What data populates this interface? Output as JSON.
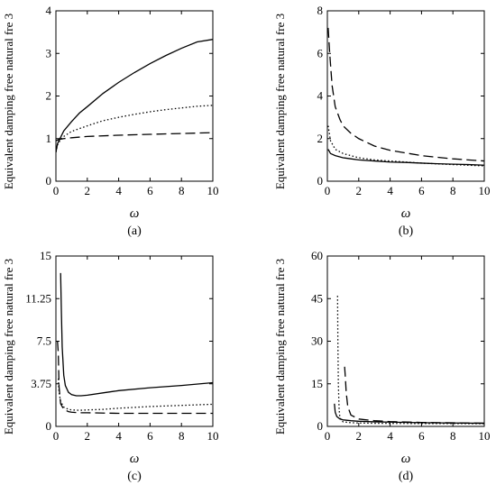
{
  "chart_data": [
    {
      "type": "line",
      "panel_label": "(a)",
      "xlabel": "ω",
      "ylabel": "Equivalent damping free natural fre 3",
      "xlim": [
        0,
        10
      ],
      "ylim": [
        0,
        4
      ],
      "xticks": [
        "0",
        "2",
        "4",
        "6",
        "8",
        "10"
      ],
      "yticks": [
        "0",
        "1",
        "2",
        "3",
        "4"
      ],
      "series": [
        {
          "style": "solid",
          "x": [
            0,
            0.1,
            0.3,
            0.5,
            1,
            1.5,
            2,
            3,
            4,
            5,
            6,
            7,
            8,
            9,
            10
          ],
          "y": [
            0.68,
            0.88,
            1.03,
            1.18,
            1.4,
            1.6,
            1.75,
            2.06,
            2.32,
            2.55,
            2.76,
            2.95,
            3.12,
            3.27,
            3.33
          ]
        },
        {
          "style": "dotted",
          "x": [
            0,
            0.1,
            0.3,
            0.5,
            1,
            2,
            3,
            4,
            5,
            6,
            7,
            8,
            9,
            10
          ],
          "y": [
            0.68,
            0.85,
            0.98,
            1.05,
            1.17,
            1.3,
            1.42,
            1.5,
            1.57,
            1.63,
            1.68,
            1.72,
            1.76,
            1.78
          ]
        },
        {
          "style": "dashed",
          "x": [
            0,
            0.2,
            0.5,
            1,
            2,
            4,
            6,
            8,
            10
          ],
          "y": [
            0.95,
            0.98,
            1.0,
            1.02,
            1.05,
            1.08,
            1.1,
            1.12,
            1.14
          ]
        }
      ]
    },
    {
      "type": "line",
      "panel_label": "(b)",
      "xlabel": "ω",
      "ylabel": "Equivalent damping free natural fre 3",
      "xlim": [
        0,
        10
      ],
      "ylim": [
        0,
        8
      ],
      "xticks": [
        "0",
        "2",
        "4",
        "6",
        "8",
        "10"
      ],
      "yticks": [
        "0",
        "2",
        "4",
        "6",
        "8"
      ],
      "series": [
        {
          "style": "solid",
          "x": [
            0.05,
            0.2,
            0.5,
            1,
            1.5,
            2,
            3,
            4,
            5,
            6,
            7,
            8,
            9,
            10
          ],
          "y": [
            1.5,
            1.3,
            1.2,
            1.1,
            1.05,
            1.0,
            0.95,
            0.9,
            0.88,
            0.85,
            0.82,
            0.8,
            0.78,
            0.75
          ]
        },
        {
          "style": "dotted",
          "x": [
            0.05,
            0.2,
            0.5,
            1,
            1.5,
            2,
            3,
            4,
            6,
            8,
            10
          ],
          "y": [
            2.6,
            1.9,
            1.5,
            1.3,
            1.2,
            1.1,
            1.0,
            0.95,
            0.85,
            0.78,
            0.72
          ]
        },
        {
          "style": "dashed",
          "x": [
            0.05,
            0.15,
            0.3,
            0.5,
            0.8,
            1,
            1.5,
            2,
            3,
            4,
            6,
            8,
            10
          ],
          "y": [
            7.2,
            6.0,
            4.5,
            3.5,
            2.9,
            2.6,
            2.25,
            2.0,
            1.65,
            1.45,
            1.2,
            1.05,
            0.95
          ]
        }
      ]
    },
    {
      "type": "line",
      "panel_label": "(c)",
      "xlabel": "ω",
      "ylabel": "Equivalent damping free natural fre 3",
      "xlim": [
        0,
        10
      ],
      "ylim": [
        0,
        15
      ],
      "xticks": [
        "0",
        "2",
        "4",
        "6",
        "8",
        "10"
      ],
      "yticks": [
        "0",
        "3.75",
        "7.5",
        "11.25",
        "15"
      ],
      "series": [
        {
          "style": "solid",
          "x": [
            0.3,
            0.35,
            0.4,
            0.5,
            0.6,
            0.8,
            1,
            1.3,
            1.6,
            2,
            3,
            4,
            6,
            8,
            10
          ],
          "y": [
            13.5,
            10,
            7,
            4.5,
            3.6,
            3.0,
            2.8,
            2.7,
            2.7,
            2.75,
            2.95,
            3.15,
            3.4,
            3.6,
            3.85
          ]
        },
        {
          "style": "dotted",
          "x": [
            0.15,
            0.2,
            0.3,
            0.5,
            0.8,
            1,
            1.5,
            2,
            3,
            4,
            6,
            8,
            10
          ],
          "y": [
            4.2,
            3.0,
            2.2,
            1.7,
            1.5,
            1.45,
            1.42,
            1.45,
            1.5,
            1.6,
            1.75,
            1.85,
            1.95
          ]
        },
        {
          "style": "dashed",
          "x": [
            0.1,
            0.15,
            0.2,
            0.3,
            0.5,
            0.8,
            1,
            1.5,
            2,
            4,
            6,
            8,
            10
          ],
          "y": [
            7.5,
            6.5,
            3.5,
            2.0,
            1.5,
            1.3,
            1.25,
            1.2,
            1.2,
            1.15,
            1.15,
            1.15,
            1.15
          ]
        }
      ]
    },
    {
      "type": "line",
      "panel_label": "(d)",
      "xlabel": "ω",
      "ylabel": "Equivalent damping free natural fre 3",
      "xlim": [
        0,
        10
      ],
      "ylim": [
        0,
        60
      ],
      "xticks": [
        "0",
        "2",
        "4",
        "6",
        "8",
        "10"
      ],
      "yticks": [
        "0",
        "15",
        "30",
        "45",
        "60"
      ],
      "series": [
        {
          "style": "solid",
          "x": [
            0.45,
            0.5,
            0.6,
            0.8,
            1,
            1.5,
            2,
            3,
            4,
            6,
            8,
            10
          ],
          "y": [
            8,
            5,
            3.5,
            2.6,
            2.3,
            2.0,
            1.8,
            1.6,
            1.5,
            1.3,
            1.2,
            1.1
          ]
        },
        {
          "style": "dotted",
          "x": [
            0.65,
            0.67,
            0.7,
            0.75,
            0.8,
            1,
            1.5,
            2,
            3,
            4,
            6,
            8,
            10
          ],
          "y": [
            46,
            30,
            15,
            6,
            3,
            1.6,
            1.3,
            1.2,
            1.1,
            1.05,
            1.0,
            1.0,
            0.95
          ]
        },
        {
          "style": "dashed",
          "x": [
            1.1,
            1.15,
            1.2,
            1.3,
            1.5,
            2,
            3,
            4,
            6,
            8,
            10
          ],
          "y": [
            21,
            17,
            12,
            7,
            4,
            2.6,
            2.0,
            1.7,
            1.4,
            1.25,
            1.15
          ]
        }
      ]
    }
  ]
}
